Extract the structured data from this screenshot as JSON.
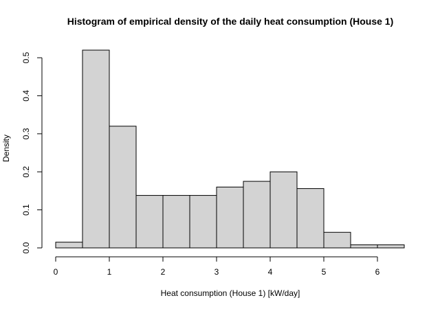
{
  "chart_data": {
    "type": "bar",
    "title": "Histogram of empirical density of the daily heat consumption (House 1)",
    "xlabel": "Heat consumption (House 1) [kW/day]",
    "ylabel": "Density",
    "bins": [
      {
        "start": 0.0,
        "end": 0.5,
        "value": 0.015
      },
      {
        "start": 0.5,
        "end": 1.0,
        "value": 0.52
      },
      {
        "start": 1.0,
        "end": 1.5,
        "value": 0.32
      },
      {
        "start": 1.5,
        "end": 2.0,
        "value": 0.138
      },
      {
        "start": 2.0,
        "end": 2.5,
        "value": 0.138
      },
      {
        "start": 2.5,
        "end": 3.0,
        "value": 0.138
      },
      {
        "start": 3.0,
        "end": 3.5,
        "value": 0.16
      },
      {
        "start": 3.5,
        "end": 4.0,
        "value": 0.175
      },
      {
        "start": 4.0,
        "end": 4.5,
        "value": 0.2
      },
      {
        "start": 4.5,
        "end": 5.0,
        "value": 0.156
      },
      {
        "start": 5.0,
        "end": 5.5,
        "value": 0.041
      },
      {
        "start": 5.5,
        "end": 6.0,
        "value": 0.008
      },
      {
        "start": 6.0,
        "end": 6.5,
        "value": 0.008
      }
    ],
    "xlim": [
      0,
      6.5
    ],
    "ylim": [
      0,
      0.52
    ],
    "xticks": [
      "0",
      "1",
      "2",
      "3",
      "4",
      "5",
      "6"
    ],
    "yticks": [
      "0.0",
      "0.1",
      "0.2",
      "0.3",
      "0.4",
      "0.5"
    ],
    "grid": false,
    "bar_color": "#d3d3d3"
  }
}
